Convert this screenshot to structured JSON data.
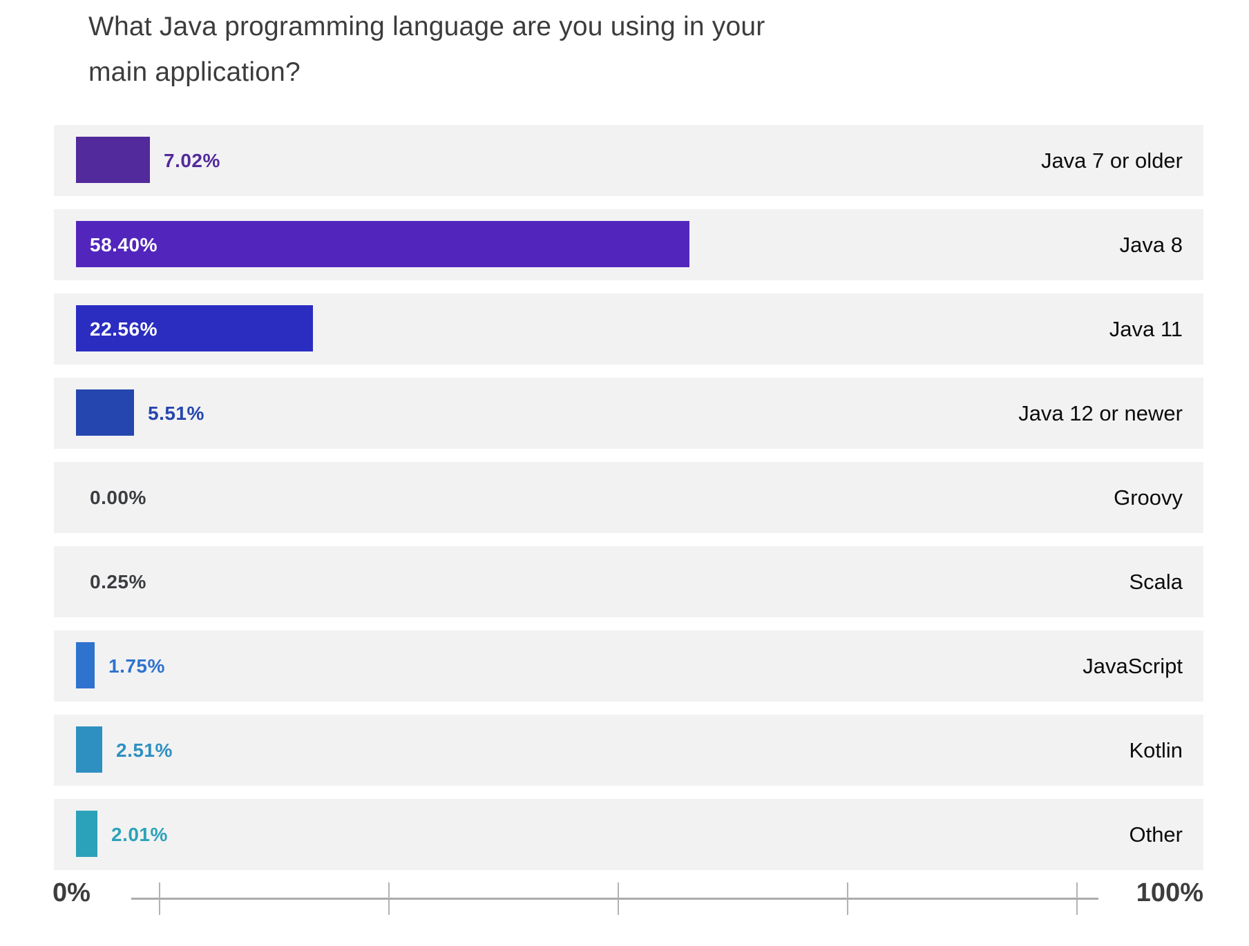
{
  "title": {
    "line1": "What Java programming language are you using in your",
    "line2": "main application?"
  },
  "axis": {
    "min_label": "0%",
    "max_label": "100%",
    "tick_count": 5
  },
  "colors": {
    "row_background": "#f2f2f3",
    "title_text": "#3c3c3c",
    "axis_text": "#3d3d3d",
    "axis_line": "#ababab",
    "category_text": "#0c0c0c",
    "inside_label_text": "#ffffff",
    "neutral_label_text": "#3b3d40"
  },
  "chart_data": {
    "type": "bar",
    "orientation": "horizontal",
    "title": "What Java programming language are you using in your main application?",
    "categories": [
      "Java 7 or older",
      "Java 8",
      "Java 11",
      "Java 12 or newer",
      "Groovy",
      "Scala",
      "JavaScript",
      "Kotlin",
      "Other"
    ],
    "values": [
      7.02,
      58.4,
      22.56,
      5.51,
      0.0,
      0.25,
      1.75,
      2.51,
      2.01
    ],
    "value_labels": [
      "7.02%",
      "58.40%",
      "22.56%",
      "5.51%",
      "0.00%",
      "0.25%",
      "1.75%",
      "2.51%",
      "2.01%"
    ],
    "bar_colors": [
      "#522a9b",
      "#5226bc",
      "#2b2dc1",
      "#2546ae",
      "#f2f2f3",
      "#f2f2f3",
      "#2e73ce",
      "#2e90c0",
      "#2ba2b9"
    ],
    "label_colors": [
      "#522a9b",
      "#ffffff",
      "#ffffff",
      "#2546ae",
      "#3b3d40",
      "#3b3d40",
      "#2e73ce",
      "#2e90c0",
      "#2ba2b9"
    ],
    "label_inside": [
      false,
      true,
      true,
      false,
      false,
      false,
      false,
      false,
      false
    ],
    "xlabel": "",
    "ylabel": "",
    "xlim": [
      0,
      100
    ],
    "grid": false,
    "legend": "none"
  }
}
